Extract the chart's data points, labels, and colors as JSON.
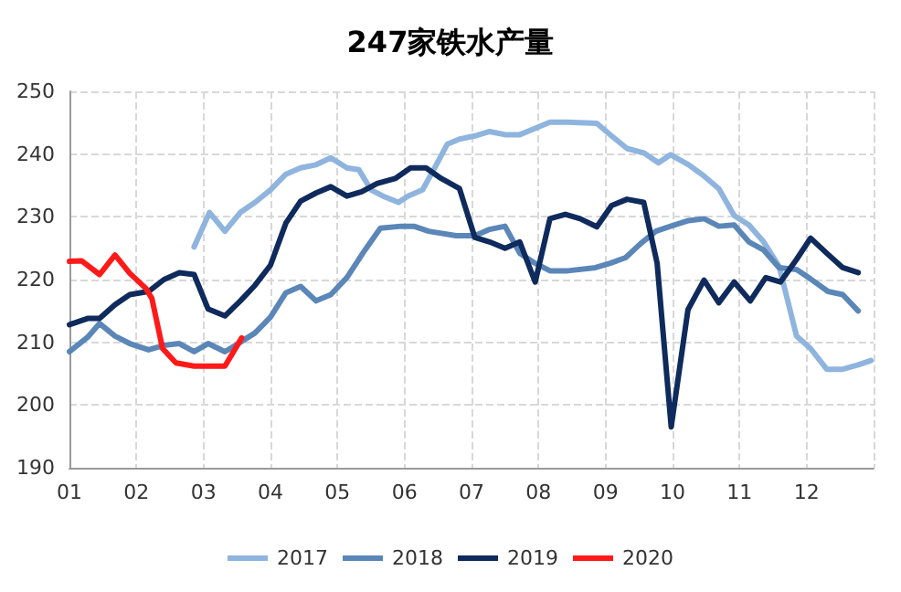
{
  "chart_data": {
    "type": "line",
    "title": "247家铁水产量",
    "xlim": [
      1,
      13
    ],
    "xticks": [
      {
        "value": 1,
        "label": "01"
      },
      {
        "value": 2,
        "label": "02"
      },
      {
        "value": 3,
        "label": "03"
      },
      {
        "value": 4,
        "label": "04"
      },
      {
        "value": 5,
        "label": "05"
      },
      {
        "value": 6,
        "label": "06"
      },
      {
        "value": 7,
        "label": "07"
      },
      {
        "value": 8,
        "label": "08"
      },
      {
        "value": 9,
        "label": "09"
      },
      {
        "value": 10,
        "label": "10"
      },
      {
        "value": 11,
        "label": "11"
      },
      {
        "value": 12,
        "label": "12"
      },
      {
        "value": 13,
        "label": null
      }
    ],
    "ylim": [
      190,
      250
    ],
    "yticks": [
      190,
      200,
      210,
      220,
      230,
      240,
      250
    ],
    "grid": true,
    "legend": "bottom",
    "marker": "none",
    "line_style": "solid",
    "series": [
      {
        "name": "2017",
        "color": "#8fb4de",
        "x": [
          2.86,
          3.09,
          3.32,
          3.55,
          3.77,
          4,
          4.23,
          4.45,
          4.68,
          4.9,
          5.14,
          5.32,
          5.5,
          5.68,
          5.91,
          6.05,
          6.27,
          6.45,
          6.64,
          6.82,
          7.05,
          7.27,
          7.5,
          7.72,
          7.95,
          8.17,
          8.44,
          8.87,
          9.09,
          9.32,
          9.57,
          9.79,
          9.97,
          10.24,
          10.47,
          10.69,
          10.92,
          11.14,
          11.36,
          11.59,
          11.85,
          12.06,
          12.3,
          12.54,
          12.77,
          12.96
        ],
        "values": [
          225.2,
          230.7,
          227.7,
          230.7,
          232.3,
          234.3,
          236.8,
          237.8,
          238.3,
          239.4,
          237.8,
          237.5,
          234.3,
          233.3,
          232.3,
          233.3,
          234.3,
          237.8,
          241.6,
          242.4,
          242.9,
          243.6,
          243.1,
          243.1,
          244.1,
          245.1,
          245.1,
          244.9,
          242.9,
          240.9,
          240.2,
          238.6,
          239.9,
          238.3,
          236.5,
          234.5,
          230.2,
          228.7,
          226,
          222.1,
          211,
          209,
          205.7,
          205.7,
          206.4,
          207.1
        ]
      },
      {
        "name": "2018",
        "color": "#5b86b8",
        "x": [
          1,
          1.27,
          1.45,
          1.68,
          1.9,
          2.18,
          2.41,
          2.64,
          2.86,
          3.07,
          3.32,
          3.55,
          3.77,
          4,
          4.23,
          4.45,
          4.68,
          4.9,
          5.14,
          5.41,
          5.64,
          5.95,
          6.14,
          6.36,
          6.77,
          7.05,
          7.27,
          7.5,
          7.72,
          7.95,
          8.17,
          8.44,
          8.85,
          9.07,
          9.3,
          9.52,
          9.75,
          9.97,
          10.24,
          10.47,
          10.69,
          10.92,
          11.14,
          11.36,
          11.59,
          11.85,
          12.06,
          12.32,
          12.54,
          12.77
        ],
        "values": [
          208.5,
          210.8,
          213,
          211,
          209.8,
          208.8,
          209.5,
          209.8,
          208.5,
          209.8,
          208.5,
          210,
          211.5,
          214,
          217.9,
          218.9,
          216.6,
          217.6,
          220.3,
          224.7,
          228.2,
          228.5,
          228.5,
          227.7,
          227,
          227,
          228,
          228.5,
          224.2,
          222.6,
          221.4,
          221.4,
          221.9,
          222.6,
          223.5,
          225.7,
          227.7,
          228.5,
          229.4,
          229.7,
          228.5,
          228.7,
          226,
          224.7,
          221.9,
          221.6,
          220.1,
          218.1,
          217.6,
          215
        ]
      },
      {
        "name": "2019",
        "color": "#0f2a5c",
        "x": [
          1,
          1.27,
          1.45,
          1.68,
          1.9,
          2.18,
          2.41,
          2.64,
          2.86,
          3.07,
          3.32,
          3.55,
          3.77,
          4,
          4.23,
          4.45,
          4.68,
          4.9,
          5.14,
          5.36,
          5.59,
          5.86,
          6.09,
          6.32,
          6.55,
          6.82,
          7.05,
          7.27,
          7.5,
          7.72,
          7.95,
          8.17,
          8.4,
          8.62,
          8.87,
          9.09,
          9.32,
          9.57,
          9.77,
          9.98,
          10.23,
          10.47,
          10.69,
          10.92,
          11.16,
          11.39,
          11.61,
          11.85,
          12.06,
          12.3,
          12.54,
          12.77
        ],
        "values": [
          212.8,
          213.8,
          213.8,
          216,
          217.6,
          218.1,
          220,
          221.1,
          220.8,
          215.3,
          214.2,
          216.6,
          219.1,
          222.3,
          229,
          232.5,
          233.8,
          234.8,
          233.3,
          234,
          235.3,
          236.1,
          237.8,
          237.8,
          236.1,
          234.5,
          226.7,
          226,
          225,
          226,
          219.6,
          229.7,
          230.4,
          229.7,
          228.4,
          231.8,
          232.8,
          232.3,
          222.6,
          196.5,
          215.2,
          219.9,
          216.3,
          219.6,
          216.6,
          220.3,
          219.6,
          223.2,
          226.6,
          224.2,
          221.9,
          221.1
        ]
      },
      {
        "name": "2020",
        "color": "#ff1a1a",
        "x": [
          1,
          1.18,
          1.45,
          1.68,
          1.9,
          2.14,
          2.23,
          2.39,
          2.59,
          2.86,
          3.32,
          3.57
        ],
        "values": [
          222.9,
          223,
          220.8,
          223.9,
          221,
          218.6,
          217,
          209,
          206.7,
          206.2,
          206.2,
          210.7
        ]
      }
    ]
  }
}
